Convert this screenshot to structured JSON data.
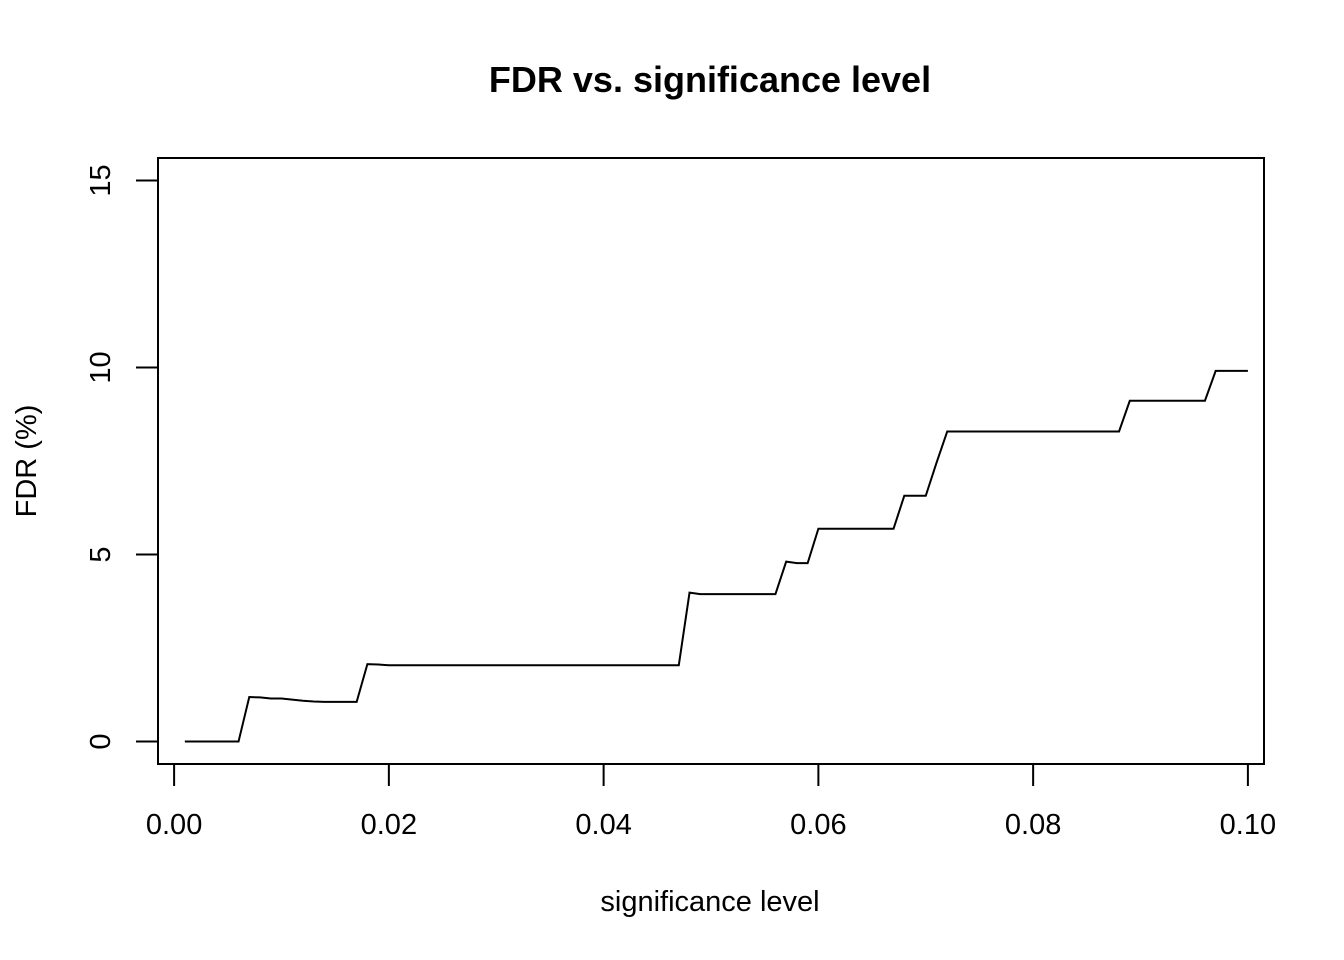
{
  "chart_data": {
    "type": "line",
    "title": "FDR vs. significance level",
    "xlabel": "significance level",
    "ylabel": "FDR (%)",
    "xlim": [
      -0.0015,
      0.1015
    ],
    "ylim": [
      -0.6,
      15.6
    ],
    "x_ticks": [
      0.0,
      0.02,
      0.04,
      0.06,
      0.08,
      0.1
    ],
    "x_tick_labels": [
      "0.00",
      "0.02",
      "0.04",
      "0.06",
      "0.08",
      "0.10"
    ],
    "y_ticks": [
      0,
      5,
      10,
      15
    ],
    "y_tick_labels": [
      "0",
      "5",
      "10",
      "15"
    ],
    "grid": false,
    "series": [
      {
        "x": [
          0.001,
          0.002,
          0.003,
          0.004,
          0.005,
          0.006,
          0.007,
          0.008,
          0.009,
          0.01,
          0.011,
          0.012,
          0.013,
          0.014,
          0.015,
          0.016,
          0.017,
          0.018,
          0.019,
          0.02,
          0.025,
          0.03,
          0.035,
          0.04,
          0.045,
          0.047,
          0.048,
          0.049,
          0.05,
          0.052,
          0.054,
          0.056,
          0.057,
          0.058,
          0.059,
          0.06,
          0.062,
          0.064,
          0.066,
          0.067,
          0.068,
          0.069,
          0.07,
          0.071,
          0.072,
          0.075,
          0.08,
          0.085,
          0.088,
          0.089,
          0.09,
          0.092,
          0.094,
          0.096,
          0.097,
          0.098,
          0.099,
          0.1
        ],
        "y": [
          0,
          0,
          0,
          0,
          0,
          0,
          1.19,
          1.18,
          1.15,
          1.15,
          1.12,
          1.09,
          1.07,
          1.06,
          1.06,
          1.06,
          1.06,
          2.07,
          2.06,
          2.04,
          2.04,
          2.04,
          2.04,
          2.04,
          2.04,
          2.04,
          3.98,
          3.94,
          3.94,
          3.94,
          3.94,
          3.94,
          4.81,
          4.77,
          4.77,
          5.69,
          5.69,
          5.69,
          5.69,
          5.69,
          6.57,
          6.57,
          6.57,
          7.45,
          8.29,
          8.29,
          8.29,
          8.29,
          8.29,
          9.11,
          9.11,
          9.11,
          9.11,
          9.11,
          9.91,
          9.91,
          9.91,
          9.91
        ]
      }
    ]
  }
}
